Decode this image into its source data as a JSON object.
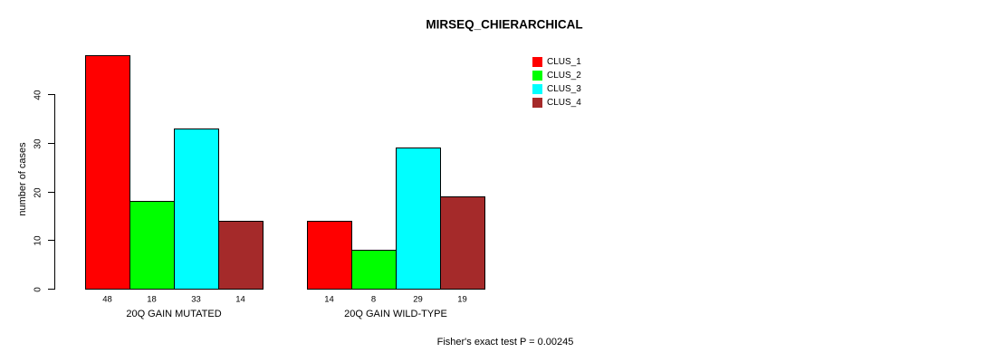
{
  "chart_data": {
    "type": "bar",
    "title": "MIRSEQ_CHIERARCHICAL",
    "ylabel": "number of cases",
    "xlabel": "",
    "categories": [
      "20Q GAIN MUTATED",
      "20Q GAIN WILD-TYPE"
    ],
    "series": [
      {
        "name": "CLUS_1",
        "color": "#FF0000",
        "values": [
          48,
          14
        ]
      },
      {
        "name": "CLUS_2",
        "color": "#00FF00",
        "values": [
          18,
          8
        ]
      },
      {
        "name": "CLUS_3",
        "color": "#00FFFF",
        "values": [
          33,
          29
        ]
      },
      {
        "name": "CLUS_4",
        "color": "#A52A2A",
        "values": [
          14,
          19
        ]
      }
    ],
    "yticks": [
      0,
      10,
      20,
      30,
      40
    ],
    "ylim": [
      0,
      48
    ],
    "grid": false,
    "show_bar_values": true,
    "bar_border_color": "#000000",
    "legend_position": "inside-top-right",
    "footnote": "Fisher's exact test P = 0.00245"
  }
}
